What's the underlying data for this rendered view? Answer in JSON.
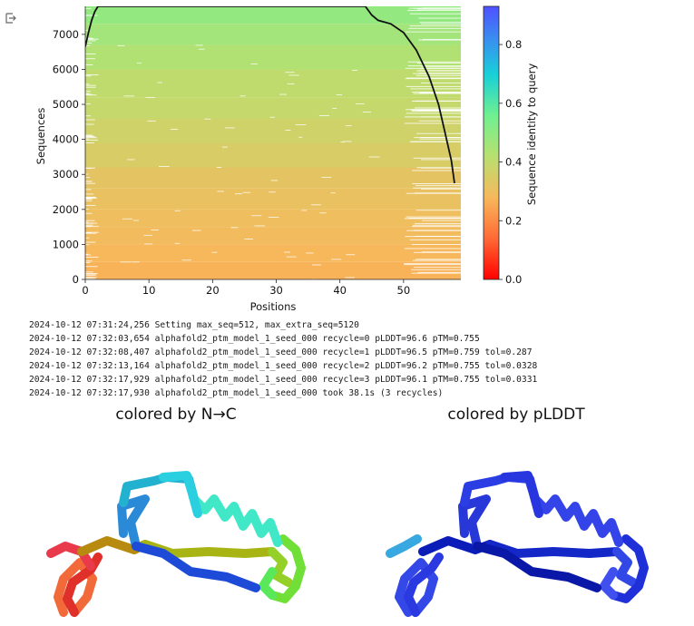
{
  "output_toolbar": {
    "expand_icon": "output-collapse-icon"
  },
  "chart_data": {
    "type": "heatmap",
    "title": "",
    "xlabel": "Positions",
    "ylabel": "Sequences",
    "colorbar_label": "Sequence identity to query",
    "xlim": [
      0,
      59
    ],
    "ylim": [
      0,
      7800
    ],
    "x_ticks": [
      0,
      10,
      20,
      30,
      40,
      50
    ],
    "y_ticks": [
      0,
      1000,
      2000,
      3000,
      4000,
      5000,
      6000,
      7000
    ],
    "colorbar_ticks": [
      0.0,
      0.2,
      0.4,
      0.6,
      0.8
    ],
    "colorbar_range": [
      0.0,
      0.93
    ],
    "colormap": "rainbow_r",
    "identity_bands": [
      {
        "from": 0,
        "to": 500,
        "identity": 0.27
      },
      {
        "from": 500,
        "to": 1000,
        "identity": 0.28
      },
      {
        "from": 1000,
        "to": 1500,
        "identity": 0.29
      },
      {
        "from": 1500,
        "to": 2000,
        "identity": 0.3
      },
      {
        "from": 2000,
        "to": 2600,
        "identity": 0.31
      },
      {
        "from": 2600,
        "to": 3200,
        "identity": 0.32
      },
      {
        "from": 3200,
        "to": 3900,
        "identity": 0.35
      },
      {
        "from": 3900,
        "to": 4600,
        "identity": 0.37
      },
      {
        "from": 4600,
        "to": 5200,
        "identity": 0.39
      },
      {
        "from": 5200,
        "to": 6000,
        "identity": 0.4
      },
      {
        "from": 6000,
        "to": 6700,
        "identity": 0.43
      },
      {
        "from": 6700,
        "to": 7300,
        "identity": 0.46
      },
      {
        "from": 7300,
        "to": 7800,
        "identity": 0.49
      }
    ],
    "coverage_line": {
      "x": [
        0,
        0.5,
        1,
        1.5,
        2,
        44,
        45,
        46,
        48,
        50,
        52,
        54,
        55.5,
        56.5,
        57.5,
        58
      ],
      "y": [
        6650,
        7050,
        7400,
        7650,
        7800,
        7800,
        7550,
        7400,
        7300,
        7050,
        6550,
        5800,
        5000,
        4200,
        3400,
        2750
      ]
    }
  },
  "log_lines": [
    "2024-10-12 07:31:24,256 Setting max_seq=512, max_extra_seq=5120",
    "2024-10-12 07:32:03,654 alphafold2_ptm_model_1_seed_000 recycle=0 pLDDT=96.6 pTM=0.755",
    "2024-10-12 07:32:08,407 alphafold2_ptm_model_1_seed_000 recycle=1 pLDDT=96.5 pTM=0.759 tol=0.287",
    "2024-10-12 07:32:13,164 alphafold2_ptm_model_1_seed_000 recycle=2 pLDDT=96.2 pTM=0.755 tol=0.0328",
    "2024-10-12 07:32:17,929 alphafold2_ptm_model_1_seed_000 recycle=3 pLDDT=96.1 pTM=0.755 tol=0.0331",
    "2024-10-12 07:32:17,930 alphafold2_ptm_model_1_seed_000 took 38.1s (3 recycles)"
  ],
  "structure_panels": {
    "left_title": "colored by N→C",
    "right_title": "colored by pLDDT"
  }
}
